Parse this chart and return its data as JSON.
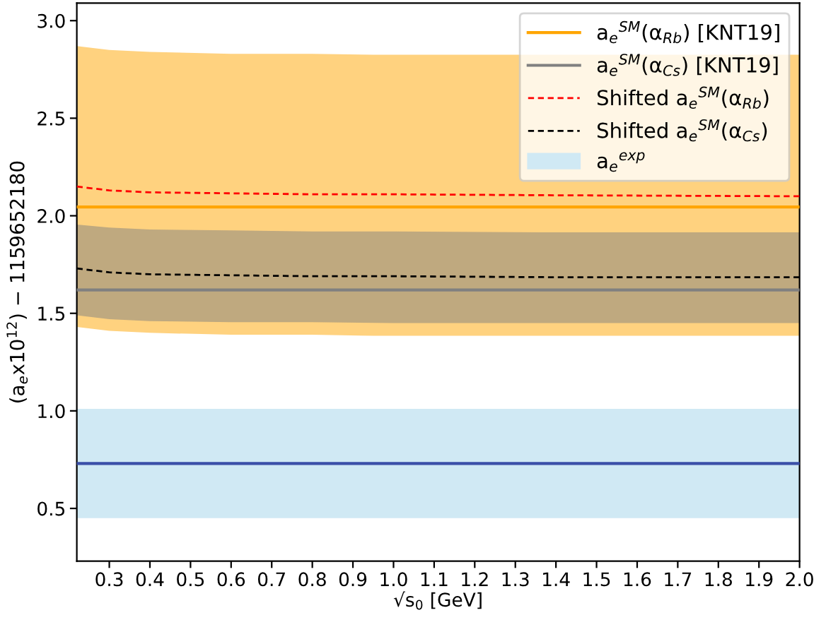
{
  "chart_data": {
    "type": "line",
    "xlabel": "√s$_{0}$ [GeV]",
    "ylabel": "(a$_{e}$x10$^{12}$) − 1159652180",
    "xlim": [
      0.22,
      2.0
    ],
    "ylim": [
      0.23,
      3.09
    ],
    "xticks": [
      0.3,
      0.4,
      0.5,
      0.6,
      0.7,
      0.8,
      0.9,
      {
        "value": 1.0,
        "label": "1.0"
      },
      1.1,
      1.2,
      1.3,
      1.4,
      1.5,
      1.6,
      1.7,
      1.8,
      1.9,
      {
        "value": 2.0,
        "label": "2.0"
      }
    ],
    "yticks": [
      0.5,
      {
        "value": 1.0,
        "label": "1.0"
      },
      1.5,
      {
        "value": 2.0,
        "label": "2.0"
      },
      2.5,
      {
        "value": 3.0,
        "label": "3.0"
      }
    ],
    "grid": false,
    "legend": "top right",
    "series": [
      {
        "name": "a$_{e}$$^{SM}$(α$_{Rb}$) [KNT19]",
        "color": "#ffa500",
        "line_style": "solid",
        "x": [
          0.22,
          0.3,
          0.4,
          0.6,
          0.8,
          0.95,
          1.1,
          2.0
        ],
        "values": [
          2.045,
          2.045,
          2.045,
          2.045,
          2.045,
          2.045,
          2.045,
          2.045
        ],
        "lower": [
          1.43,
          1.41,
          1.4,
          1.39,
          1.39,
          1.385,
          1.385,
          1.385
        ],
        "upper": [
          2.87,
          2.85,
          2.84,
          2.83,
          2.83,
          2.825,
          2.825,
          2.825
        ]
      },
      {
        "name": "a$_{e}$$^{SM}$(α$_{Cs}$) [KNT19]",
        "color": "#808080",
        "line_style": "solid",
        "x": [
          0.22,
          0.3,
          0.4,
          0.6,
          0.8,
          1.0,
          1.4,
          2.0
        ],
        "values": [
          1.62,
          1.62,
          1.62,
          1.62,
          1.62,
          1.62,
          1.62,
          1.62
        ],
        "lower": [
          1.49,
          1.47,
          1.46,
          1.455,
          1.455,
          1.45,
          1.45,
          1.45
        ],
        "upper": [
          1.955,
          1.94,
          1.93,
          1.925,
          1.92,
          1.92,
          1.915,
          1.915
        ]
      },
      {
        "name": "Shifted a$_{e}$$^{SM}$(α$_{Rb}$)",
        "color": "#ff0000",
        "line_style": "dashed",
        "x": [
          0.22,
          0.3,
          0.4,
          0.6,
          0.8,
          1.0,
          1.4,
          2.0
        ],
        "values": [
          2.15,
          2.13,
          2.12,
          2.115,
          2.11,
          2.11,
          2.105,
          2.1
        ]
      },
      {
        "name": "Shifted a$_{e}$$^{SM}$(α$_{Cs}$)",
        "color": "#000000",
        "line_style": "dashed",
        "x": [
          0.22,
          0.3,
          0.4,
          0.6,
          0.8,
          1.0,
          1.4,
          2.0
        ],
        "values": [
          1.73,
          1.71,
          1.7,
          1.695,
          1.69,
          1.69,
          1.685,
          1.685
        ]
      },
      {
        "color": "#3a4fa8",
        "line_style": "solid",
        "x": [
          0.22,
          2.0
        ],
        "values": [
          0.73,
          0.73
        ]
      }
    ],
    "bands": [
      {
        "axis": "y",
        "from": 0.45,
        "to": 1.01,
        "label": "a$_{e}$$^{exp}$",
        "color": "#d0e9f4"
      }
    ]
  }
}
